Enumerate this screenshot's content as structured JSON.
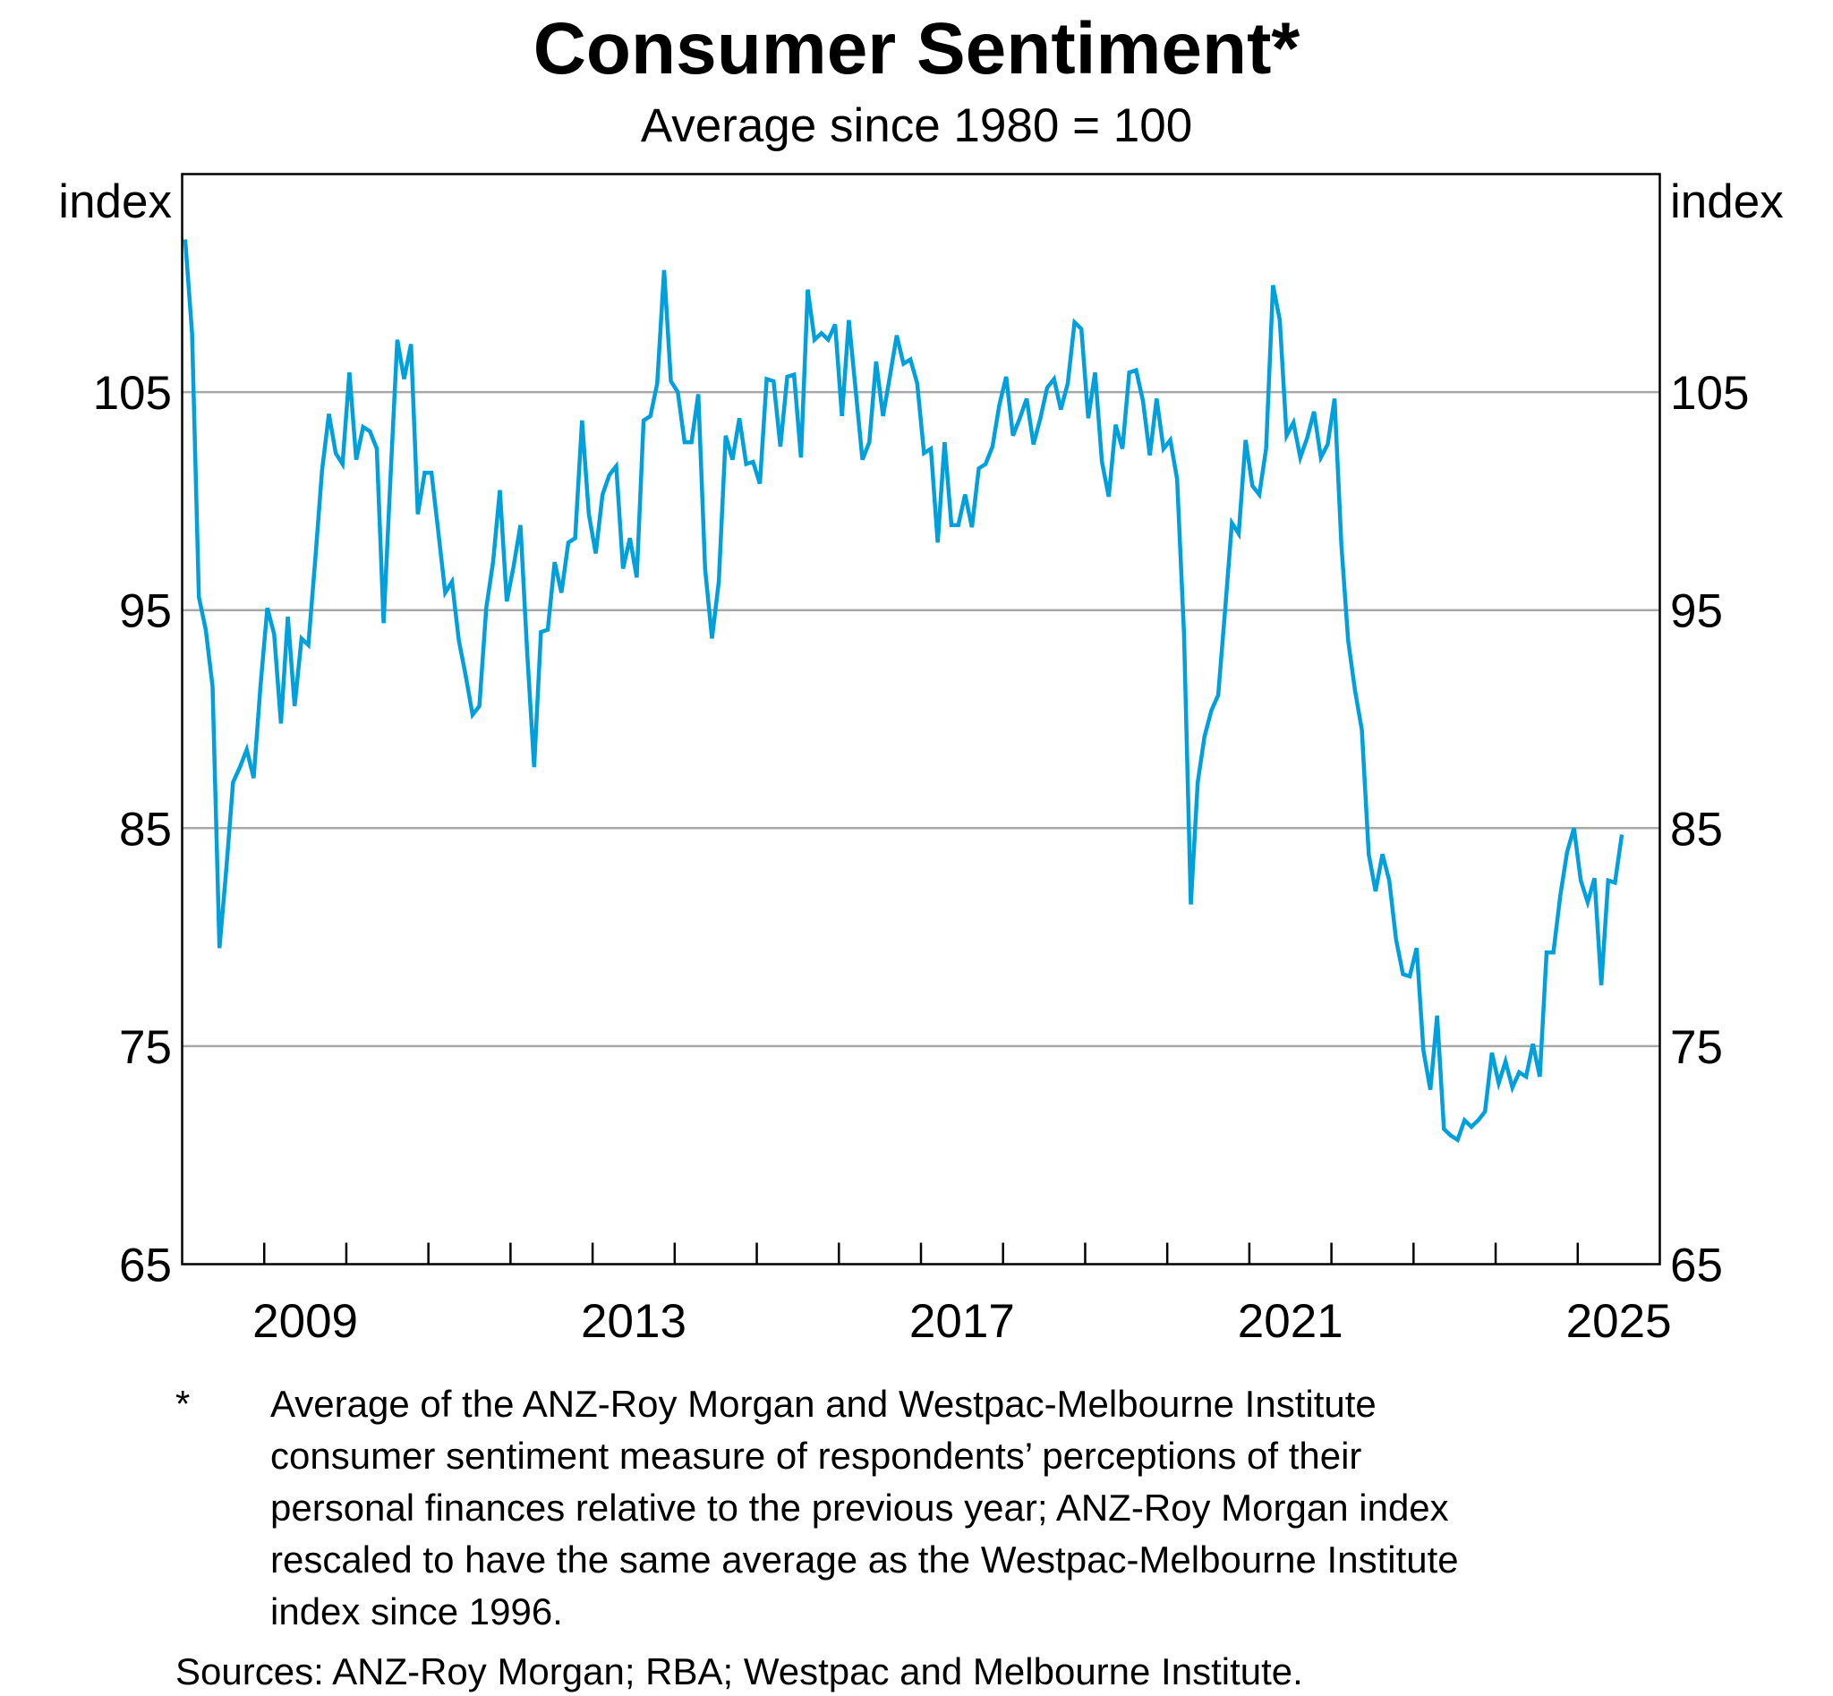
{
  "chart_data": {
    "type": "line",
    "title": "Consumer Sentiment*",
    "subtitle": "Average since 1980 = 100",
    "ylabel_left": "index",
    "ylabel_right": "index",
    "ylim": [
      65,
      115
    ],
    "yticks": [
      65,
      75,
      85,
      95,
      105
    ],
    "xlim": [
      "2008-01",
      "2025-12"
    ],
    "xtick_labels": [
      "2009",
      "2013",
      "2017",
      "2021",
      "2025"
    ],
    "grid": true,
    "frequency": "monthly",
    "series": [
      {
        "color": "#00a0dc",
        "values_by_year": {
          "2008": [
            112.0,
            107.7,
            95.6,
            94.1,
            91.5,
            79.5,
            83.1,
            87.1,
            87.8,
            88.6,
            87.3,
            91.5
          ],
          "2009": [
            95.1,
            93.9,
            89.8,
            94.7,
            90.6,
            93.7,
            93.4,
            97.3,
            101.4,
            104.0,
            102.2,
            101.7
          ],
          "2010": [
            105.9,
            101.9,
            103.4,
            103.2,
            102.4,
            94.4,
            101.0,
            107.4,
            105.6,
            107.2,
            99.4,
            101.3
          ],
          "2011": [
            101.3,
            98.6,
            95.8,
            96.3,
            93.6,
            92.0,
            90.2,
            90.6,
            95.1,
            97.2,
            100.5,
            95.4
          ],
          "2012": [
            97.0,
            98.9,
            93.0,
            87.8,
            94.0,
            94.1,
            97.2,
            95.8,
            98.1,
            98.3,
            103.7,
            99.4
          ],
          "2013": [
            97.6,
            100.3,
            101.2,
            101.6,
            96.9,
            98.3,
            96.5,
            103.7,
            103.9,
            105.4,
            110.6,
            105.5
          ],
          "2014": [
            105.0,
            102.7,
            102.7,
            104.9,
            96.9,
            93.7,
            96.3,
            103.0,
            101.9,
            103.8,
            101.7,
            101.8
          ],
          "2015": [
            100.8,
            105.6,
            105.5,
            102.5,
            105.7,
            105.8,
            102.0,
            109.7,
            107.4,
            107.7,
            107.4,
            108.1
          ],
          "2016": [
            103.9,
            108.3,
            105.1,
            101.9,
            102.7,
            106.4,
            103.9,
            105.7,
            107.6,
            106.3,
            106.5,
            105.4
          ],
          "2017": [
            102.2,
            102.4,
            98.1,
            102.7,
            98.9,
            98.9,
            100.3,
            98.8,
            101.5,
            101.7,
            102.5,
            104.4
          ],
          "2018": [
            105.7,
            103.0,
            103.8,
            104.7,
            102.6,
            103.8,
            105.2,
            105.6,
            104.2,
            105.4,
            108.2,
            107.9
          ],
          "2019": [
            103.8,
            105.9,
            101.8,
            100.2,
            103.5,
            102.4,
            105.9,
            106.0,
            104.6,
            102.1,
            104.7,
            102.4
          ],
          "2020": [
            102.8,
            101.0,
            93.9,
            81.5,
            87.1,
            89.2,
            90.4,
            91.1,
            95.0,
            99.0,
            98.5,
            102.8
          ],
          "2021": [
            100.7,
            100.3,
            102.4,
            109.9,
            108.3,
            103.0,
            103.6,
            102.0,
            102.9,
            104.1,
            102.0,
            102.6
          ],
          "2022": [
            104.7,
            98.0,
            93.6,
            91.3,
            89.5,
            83.8,
            82.1,
            83.8,
            82.6,
            79.9,
            78.3,
            78.2
          ],
          "2023": [
            79.5,
            74.8,
            73.0,
            76.4,
            71.2,
            70.9,
            70.7,
            71.6,
            71.3,
            71.6,
            72.0,
            74.7
          ],
          "2024": [
            73.3,
            74.3,
            73.1,
            73.8,
            73.6,
            75.1,
            73.6,
            79.3,
            79.3,
            81.9,
            83.9,
            85.0
          ],
          "2025": [
            82.6,
            81.6,
            82.7,
            77.8,
            82.6,
            82.5,
            84.7
          ]
        }
      }
    ]
  },
  "footnote": {
    "marker": "*",
    "lines": [
      "Average of the ANZ-Roy Morgan and Westpac-Melbourne Institute",
      "consumer sentiment measure of respondents’ perceptions of their",
      "personal finances relative to the previous year; ANZ-Roy Morgan index",
      "rescaled to have the same average as the Westpac-Melbourne Institute",
      "index since 1996."
    ],
    "sources": "Sources: ANZ-Roy Morgan; RBA; Westpac and Melbourne Institute."
  }
}
